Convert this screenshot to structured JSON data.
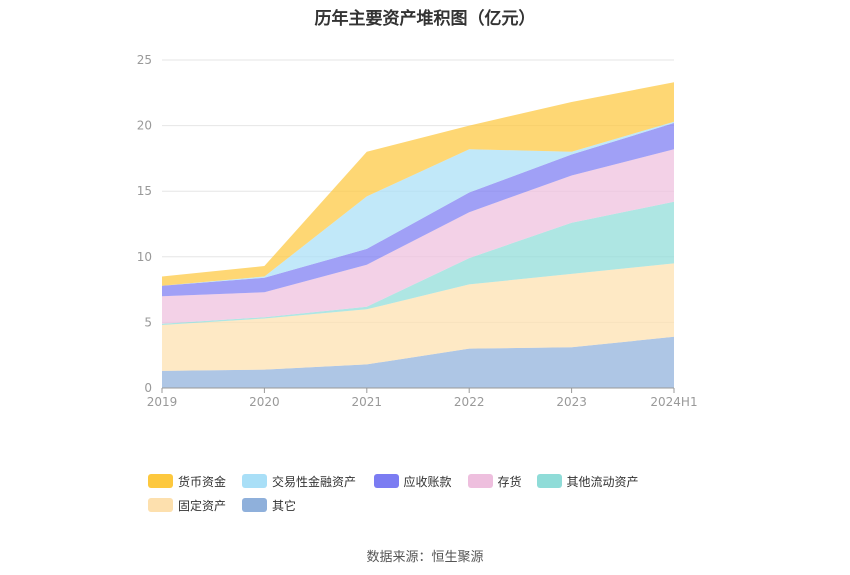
{
  "title": "历年主要资产堆积图（亿元）",
  "source_text": "数据来源：恒生聚源",
  "chart_data": {
    "type": "area",
    "stacked": true,
    "categories": [
      "2019",
      "2020",
      "2021",
      "2022",
      "2023",
      "2024H1"
    ],
    "ylim": [
      0,
      25
    ],
    "yticks": [
      0,
      5,
      10,
      15,
      20,
      25
    ],
    "grid": true,
    "legend_position": "bottom",
    "series": [
      {
        "name": "其它",
        "color": "#8fb0db",
        "values": [
          1.3,
          1.4,
          1.8,
          3.0,
          3.1,
          3.9
        ]
      },
      {
        "name": "固定资产",
        "color": "#fde0ae",
        "values": [
          3.5,
          3.9,
          4.2,
          4.9,
          5.6,
          5.6
        ]
      },
      {
        "name": "其他流动资产",
        "color": "#8fdcd8",
        "values": [
          0.1,
          0.1,
          0.2,
          2.0,
          3.9,
          4.7
        ]
      },
      {
        "name": "存货",
        "color": "#eebfde",
        "values": [
          2.1,
          1.9,
          3.2,
          3.5,
          3.6,
          4.0
        ]
      },
      {
        "name": "应收账款",
        "color": "#7b7cf2",
        "values": [
          0.8,
          1.1,
          1.2,
          1.5,
          1.6,
          2.0
        ]
      },
      {
        "name": "交易性金融资产",
        "color": "#a9dff7",
        "values": [
          0.0,
          0.1,
          4.0,
          3.3,
          0.2,
          0.1
        ]
      },
      {
        "name": "货币资金",
        "color": "#fdc83e",
        "values": [
          0.7,
          0.8,
          3.4,
          1.8,
          3.8,
          3.0
        ]
      }
    ]
  }
}
